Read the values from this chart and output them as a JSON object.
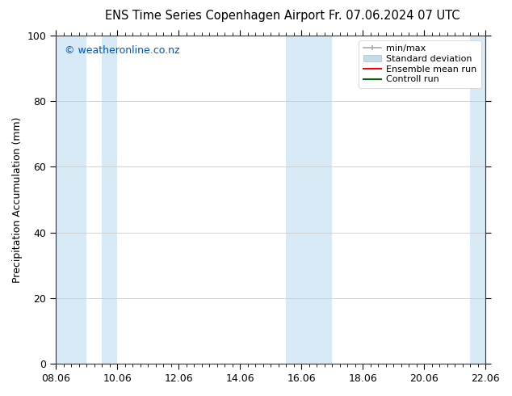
{
  "title_left": "ENS Time Series Copenhagen Airport",
  "title_right": "Fr. 07.06.2024 07 UTC",
  "ylabel": "Precipitation Accumulation (mm)",
  "ylim": [
    0,
    100
  ],
  "yticks": [
    0,
    20,
    40,
    60,
    80,
    100
  ],
  "xtick_labels": [
    "08.06",
    "10.06",
    "12.06",
    "14.06",
    "16.06",
    "18.06",
    "20.06",
    "22.06"
  ],
  "xtick_positions": [
    0,
    2,
    4,
    6,
    8,
    10,
    12,
    14
  ],
  "xlim": [
    0,
    14
  ],
  "background_color": "#ffffff",
  "watermark_text": "© weatheronline.co.nz",
  "watermark_color": "#0055bb",
  "shaded_bands": [
    [
      0.0,
      1.0
    ],
    [
      1.5,
      2.0
    ],
    [
      7.5,
      9.0
    ],
    [
      13.5,
      14.0
    ]
  ],
  "shaded_color": "#d8eaf6",
  "legend_labels": [
    "min/max",
    "Standard deviation",
    "Ensemble mean run",
    "Controll run"
  ],
  "legend_colors": [
    "#999999",
    "#c8dce8",
    "#ff0000",
    "#006600"
  ],
  "title_fontsize": 10.5,
  "ylabel_fontsize": 9,
  "tick_fontsize": 9,
  "legend_fontsize": 8
}
